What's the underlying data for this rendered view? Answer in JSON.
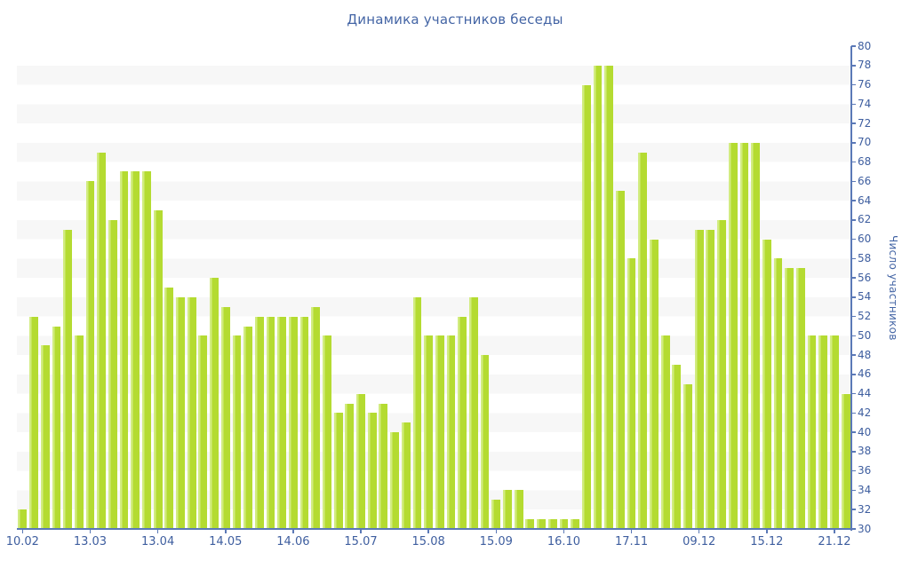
{
  "chart": {
    "title": "Динамика участников беседы",
    "y_axis_label": "Число участников"
  },
  "chart_data": {
    "type": "bar",
    "title": "Динамика участников беседы",
    "xlabel": "",
    "ylabel": "Число участников",
    "ylim": [
      30,
      80
    ],
    "y_tick_step": 2,
    "y_tick_labels": [
      "80",
      "78",
      "76",
      "74",
      "72",
      "70",
      "68",
      "66",
      "64",
      "62",
      "60",
      "58",
      "56",
      "54",
      "52",
      "50",
      "48",
      "46",
      "44",
      "42",
      "40",
      "38",
      "36",
      "34",
      "32",
      "30"
    ],
    "x_tick_labels": [
      "10.02",
      "13.03",
      "13.04",
      "14.05",
      "14.06",
      "15.07",
      "15.08",
      "15.09",
      "16.10",
      "17.11",
      "09.12",
      "15.12",
      "21.12"
    ],
    "x_tick_every": 6,
    "n_bars": 74,
    "values": [
      32,
      52,
      49,
      51,
      61,
      50,
      66,
      69,
      62,
      67,
      67,
      67,
      63,
      55,
      54,
      54,
      50,
      56,
      53,
      50,
      51,
      52,
      52,
      52,
      52,
      52,
      53,
      50,
      42,
      43,
      44,
      42,
      43,
      40,
      41,
      54,
      50,
      50,
      50,
      52,
      54,
      48,
      33,
      34,
      34,
      31,
      31,
      31,
      31,
      31,
      76,
      78,
      78,
      65,
      58,
      69,
      60,
      50,
      47,
      45,
      61,
      61,
      62,
      70,
      70,
      70,
      60,
      58,
      57,
      57,
      50,
      50,
      50,
      44
    ],
    "grid": "horizontal-stripes",
    "legend": false,
    "colors": {
      "bar": "#b4db31",
      "bar_edge_light": "#d2ec80",
      "stripe": "#f7f7f7",
      "background": "#ffffff",
      "axis_line": "#5b79b7",
      "tick_text": "#3e5e9f",
      "title_text": "#4465a5"
    }
  }
}
